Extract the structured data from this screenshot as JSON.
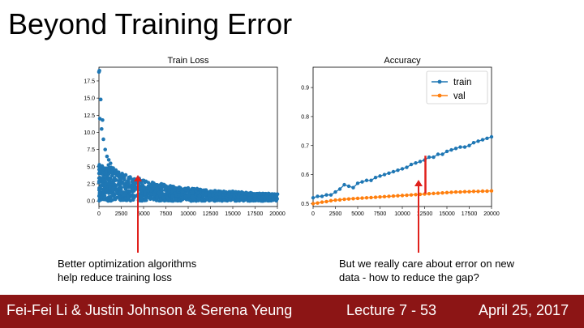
{
  "slide": {
    "title": "Beyond Training Error"
  },
  "captions": {
    "left": [
      "Better optimization algorithms",
      "help reduce training loss"
    ],
    "right": [
      "But we really care about error on new",
      "data - how to reduce the gap?"
    ]
  },
  "footer": {
    "authors": "Fei-Fei Li & Justin Johnson & Serena Yeung",
    "lecture": "Lecture 7 - 53",
    "date": "April 25, 2017"
  },
  "colors": {
    "train": "#1f77b4",
    "val": "#ff7f0e",
    "arrow": "#e0211c",
    "footer": "#8c1515"
  },
  "chart_data": [
    {
      "type": "scatter",
      "title": "Train Loss",
      "xlim": [
        0,
        20000
      ],
      "ylim": [
        -0.8,
        19.5
      ],
      "xticks": [
        0,
        2500,
        5000,
        7500,
        10000,
        12500,
        15000,
        17500,
        20000
      ],
      "yticks": [
        0.0,
        2.5,
        5.0,
        7.5,
        10.0,
        12.5,
        15.0,
        17.5
      ],
      "ytick_labels": [
        "0.0",
        "2.5",
        "5.0",
        "7.5",
        "10.0",
        "12.5",
        "15.0",
        "17.5"
      ],
      "grid": false,
      "series": [
        {
          "x": [
            0,
            50,
            100,
            200,
            300,
            400,
            500,
            700,
            900,
            1100,
            1300,
            1600,
            1900,
            2200,
            2600,
            3000,
            3500,
            4000,
            4500,
            5000,
            6000,
            7000,
            8000,
            9000,
            10000,
            11000,
            12000,
            13000,
            14000,
            15000,
            16000,
            17000,
            18000,
            19000,
            20000
          ],
          "y": [
            18.8,
            19.0,
            12.0,
            14.8,
            10.5,
            11.8,
            9.0,
            7.5,
            6.5,
            6.0,
            5.5,
            4.8,
            4.5,
            4.2,
            4.0,
            3.8,
            3.5,
            3.2,
            3.3,
            3.0,
            2.7,
            2.5,
            2.2,
            2.0,
            1.9,
            1.8,
            1.6,
            1.5,
            1.4,
            1.4,
            1.3,
            1.2,
            1.1,
            1.1,
            1.0
          ]
        }
      ]
    },
    {
      "type": "line",
      "title": "Accuracy",
      "xlim": [
        0,
        20000
      ],
      "ylim": [
        0.49,
        0.97
      ],
      "xticks": [
        0,
        2500,
        5000,
        7500,
        10000,
        12500,
        15000,
        17500,
        20000
      ],
      "yticks": [
        0.5,
        0.6,
        0.7,
        0.8,
        0.9
      ],
      "ytick_labels": [
        "0.5",
        "0.6",
        "0.7",
        "0.8",
        "0.9"
      ],
      "legend_position": "top-right",
      "grid": false,
      "series": [
        {
          "name": "train",
          "x": [
            0,
            500,
            1000,
            1500,
            2000,
            2500,
            3000,
            3500,
            4000,
            4500,
            5000,
            5500,
            6000,
            6500,
            7000,
            7500,
            8000,
            8500,
            9000,
            9500,
            10000,
            10500,
            11000,
            11500,
            12000,
            12500,
            13000,
            13500,
            14000,
            14500,
            15000,
            15500,
            16000,
            16500,
            17000,
            17500,
            18000,
            18500,
            19000,
            19500,
            20000
          ],
          "y": [
            0.52,
            0.525,
            0.525,
            0.53,
            0.53,
            0.54,
            0.55,
            0.565,
            0.56,
            0.555,
            0.57,
            0.575,
            0.58,
            0.58,
            0.59,
            0.595,
            0.6,
            0.605,
            0.61,
            0.615,
            0.62,
            0.625,
            0.635,
            0.64,
            0.645,
            0.65,
            0.66,
            0.66,
            0.67,
            0.67,
            0.68,
            0.685,
            0.69,
            0.695,
            0.695,
            0.7,
            0.71,
            0.715,
            0.72,
            0.725,
            0.73
          ]
        },
        {
          "name": "val",
          "x": [
            0,
            500,
            1000,
            1500,
            2000,
            2500,
            3000,
            3500,
            4000,
            4500,
            5000,
            5500,
            6000,
            6500,
            7000,
            7500,
            8000,
            8500,
            9000,
            9500,
            10000,
            10500,
            11000,
            11500,
            12000,
            12500,
            13000,
            13500,
            14000,
            14500,
            15000,
            15500,
            16000,
            16500,
            17000,
            17500,
            18000,
            18500,
            19000,
            19500,
            20000
          ],
          "y": [
            0.5,
            0.502,
            0.505,
            0.507,
            0.51,
            0.512,
            0.513,
            0.515,
            0.516,
            0.517,
            0.518,
            0.519,
            0.52,
            0.521,
            0.522,
            0.523,
            0.524,
            0.525,
            0.526,
            0.527,
            0.528,
            0.529,
            0.53,
            0.531,
            0.532,
            0.533,
            0.534,
            0.535,
            0.536,
            0.537,
            0.538,
            0.539,
            0.54,
            0.54,
            0.541,
            0.541,
            0.542,
            0.542,
            0.543,
            0.543,
            0.544
          ]
        }
      ]
    }
  ]
}
